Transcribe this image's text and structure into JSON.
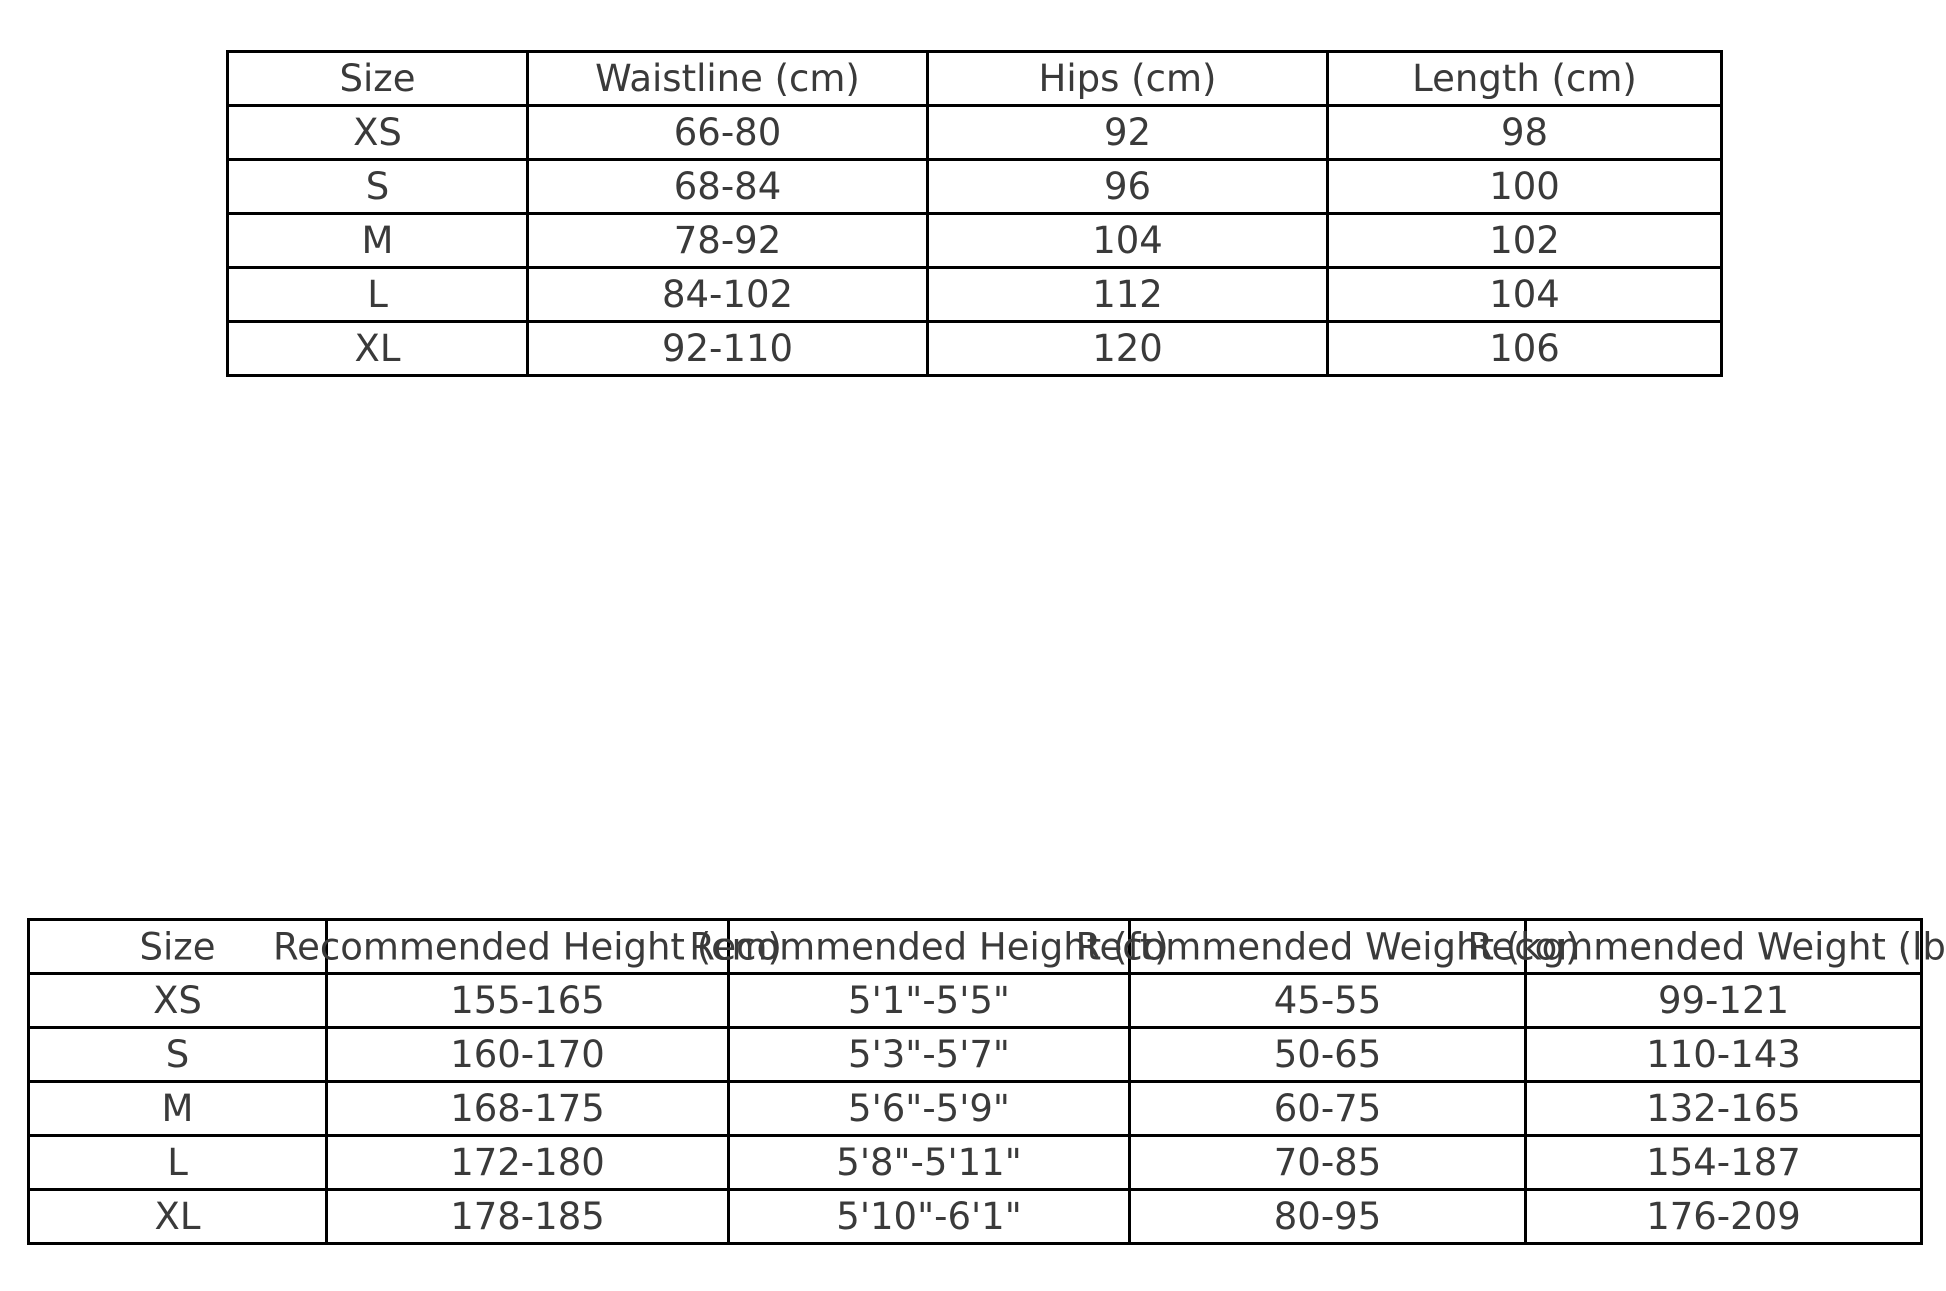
{
  "page": {
    "background_color": "#ffffff",
    "text_color": "#3a3a3a",
    "border_color": "#000000"
  },
  "chart_data": [
    {
      "type": "table",
      "name": "garment-size-chart",
      "title": "",
      "headers": [
        "Size",
        "Waistline (cm)",
        "Hips (cm)",
        "Length (cm)"
      ],
      "rows": [
        [
          "XS",
          "66-80",
          "92",
          "98"
        ],
        [
          "S",
          "68-84",
          "96",
          "100"
        ],
        [
          "M",
          "78-92",
          "104",
          "102"
        ],
        [
          "L",
          "84-102",
          "112",
          "104"
        ],
        [
          "XL",
          "92-110",
          "120",
          "106"
        ]
      ],
      "header_overflow": false
    },
    {
      "type": "table",
      "name": "recommended-body-size-chart",
      "title": "",
      "headers": [
        "Size",
        "Recommended Height (cm)",
        "Recommended Height (ft)",
        "Recommended Weight (kg)",
        "Recommended Weight (lbs)"
      ],
      "rows": [
        [
          "XS",
          "155-165",
          "5'1\"-5'5\"",
          "45-55",
          "99-121"
        ],
        [
          "S",
          "160-170",
          "5'3\"-5'7\"",
          "50-65",
          "110-143"
        ],
        [
          "M",
          "168-175",
          "5'6\"-5'9\"",
          "60-75",
          "132-165"
        ],
        [
          "L",
          "172-180",
          "5'8\"-5'11\"",
          "70-85",
          "154-187"
        ],
        [
          "XL",
          "178-185",
          "5'10\"-6'1\"",
          "80-95",
          "176-209"
        ]
      ],
      "header_overflow": true
    }
  ]
}
